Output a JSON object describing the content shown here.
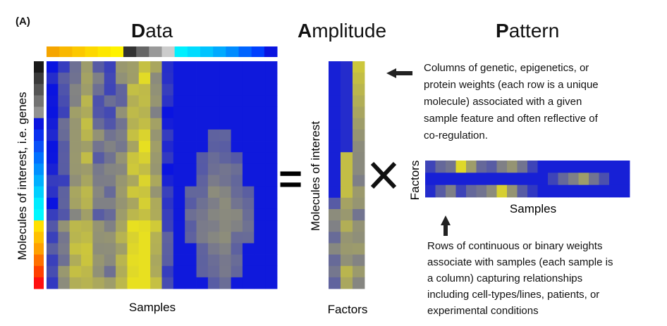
{
  "panel_label": "(A)",
  "titles": {
    "data_cap": "D",
    "data_rest": "ata",
    "amplitude_cap": "A",
    "amplitude_rest": "mplitude",
    "pattern_cap": "P",
    "pattern_rest": "attern"
  },
  "axes": {
    "data_x": "Samples",
    "data_y": "Molecules of interest, i.e. genes",
    "amplitude_x": "Factors",
    "amplitude_y": "Molecules of interest",
    "pattern_x": "Samples",
    "pattern_y": "Factors"
  },
  "operators": {
    "equals": "=",
    "times": "×"
  },
  "notes": {
    "amplitude": [
      "Columns of genetic, epigenetics, or",
      "protein weights (each row is a unique",
      "molecule) associated with a given",
      "sample feature and often reflective of",
      "co-regulation."
    ],
    "pattern": [
      "Rows of continuous or binary weights",
      "associate with samples (each sample is",
      "a column) capturing relationships",
      "including cell-types/lines, patients, or",
      "experimental conditions"
    ]
  },
  "colors": {
    "background_blue": "#0a14e0",
    "high_yellow": "#e8e020",
    "mid_gray": "#8c8c7c",
    "arrow": "#222222"
  },
  "sample_colorbar": [
    "#f5a500",
    "#f9b800",
    "#fcc800",
    "#fdd800",
    "#fde700",
    "#fff300",
    "#333333",
    "#666666",
    "#999999",
    "#cccccc",
    "#00f0ff",
    "#00dcff",
    "#00c4ff",
    "#00aaff",
    "#008cff",
    "#0064ff",
    "#0040ff",
    "#0a14e0"
  ],
  "gene_colorbar": [
    "#1a1a1a",
    "#3a3a3a",
    "#555555",
    "#737373",
    "#919191",
    "#0a14e0",
    "#0a30f0",
    "#0a50f8",
    "#0070ff",
    "#0090ff",
    "#00b0ff",
    "#00d0ff",
    "#00ecff",
    "#00f8ff",
    "#ffe000",
    "#ffc000",
    "#ffa000",
    "#ff7000",
    "#ff4000",
    "#ff1010"
  ]
}
